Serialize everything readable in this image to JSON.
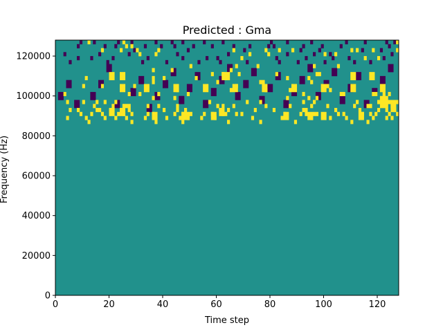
{
  "chart_data": {
    "type": "heatmap",
    "title": "Predicted : Gma",
    "xlabel": "Time step",
    "ylabel": "Frequency (Hz)",
    "xlim": [
      0,
      128
    ],
    "ylim": [
      0,
      128000
    ],
    "x_ticks": [
      0,
      20,
      40,
      60,
      80,
      100,
      120
    ],
    "y_ticks": [
      0,
      20000,
      40000,
      60000,
      80000,
      100000,
      120000
    ],
    "x_tick_labels": [
      "0",
      "20",
      "40",
      "60",
      "80",
      "100",
      "120"
    ],
    "y_tick_labels": [
      "0",
      "20000",
      "40000",
      "60000",
      "80000",
      "100000",
      "120000"
    ],
    "n_time_steps": 128,
    "n_freq_bins": 64,
    "value_levels": [
      -1,
      0,
      1
    ],
    "colors": {
      "-1": "#440154",
      "0": "#21918c",
      "1": "#fde725"
    },
    "background_value": 0,
    "cells_high": [
      [
        12,
        63
      ],
      [
        25,
        63
      ],
      [
        26,
        62
      ],
      [
        28,
        62
      ],
      [
        127,
        63
      ],
      [
        17,
        61
      ],
      [
        24,
        61
      ],
      [
        30,
        61
      ],
      [
        38,
        61
      ],
      [
        66,
        61
      ],
      [
        78,
        61
      ],
      [
        83,
        61
      ],
      [
        88,
        61
      ],
      [
        110,
        61
      ],
      [
        112,
        61
      ],
      [
        118,
        61
      ],
      [
        127,
        61
      ],
      [
        31,
        60
      ],
      [
        37,
        60
      ],
      [
        72,
        60
      ],
      [
        79,
        60
      ],
      [
        100,
        60
      ],
      [
        104,
        60
      ],
      [
        69,
        59
      ],
      [
        115,
        59
      ],
      [
        120,
        59
      ],
      [
        50,
        57
      ],
      [
        67,
        57
      ],
      [
        75,
        57
      ],
      [
        96,
        57
      ],
      [
        105,
        57
      ],
      [
        36,
        56
      ],
      [
        43,
        56
      ],
      [
        65,
        56
      ],
      [
        58,
        55
      ],
      [
        62,
        55
      ],
      [
        68,
        55
      ],
      [
        82,
        55
      ],
      [
        97,
        55
      ],
      [
        98,
        55
      ],
      [
        11,
        54
      ],
      [
        40,
        54
      ],
      [
        52,
        54
      ],
      [
        86,
        54
      ],
      [
        94,
        54
      ],
      [
        60,
        53
      ],
      [
        76,
        53
      ],
      [
        77,
        53
      ],
      [
        95,
        53
      ],
      [
        10,
        52
      ],
      [
        17,
        52
      ],
      [
        29,
        52
      ],
      [
        67,
        52
      ],
      [
        101,
        52
      ],
      [
        45,
        51
      ],
      [
        65,
        51
      ],
      [
        78,
        51
      ],
      [
        87,
        51
      ],
      [
        102,
        51
      ],
      [
        3,
        50
      ],
      [
        27,
        50
      ],
      [
        31,
        50
      ],
      [
        38,
        50
      ],
      [
        49,
        50
      ],
      [
        92,
        50
      ],
      [
        106,
        50
      ],
      [
        107,
        50
      ],
      [
        118,
        50
      ],
      [
        119,
        50
      ],
      [
        122,
        50
      ],
      [
        124,
        50
      ],
      [
        36,
        49
      ],
      [
        44,
        49
      ],
      [
        86,
        49
      ],
      [
        94,
        49
      ],
      [
        97,
        49
      ],
      [
        4,
        48
      ],
      [
        10,
        48
      ],
      [
        15,
        48
      ],
      [
        18,
        48
      ],
      [
        22,
        48
      ],
      [
        57,
        48
      ],
      [
        71,
        48
      ],
      [
        76,
        48
      ],
      [
        92,
        48
      ],
      [
        96,
        48
      ],
      [
        112,
        48
      ],
      [
        120,
        48
      ],
      [
        124,
        48
      ],
      [
        127,
        48
      ],
      [
        14,
        47
      ],
      [
        21,
        47
      ],
      [
        25,
        47
      ],
      [
        26,
        47
      ],
      [
        27,
        47
      ],
      [
        34,
        47
      ],
      [
        38,
        47
      ],
      [
        45,
        47
      ],
      [
        60,
        47
      ],
      [
        62,
        47
      ],
      [
        66,
        47
      ],
      [
        78,
        47
      ],
      [
        87,
        47
      ],
      [
        95,
        47
      ],
      [
        101,
        47
      ],
      [
        111,
        47
      ],
      [
        116,
        47
      ],
      [
        117,
        47
      ],
      [
        125,
        47
      ],
      [
        5,
        46
      ],
      [
        8,
        46
      ],
      [
        15,
        46
      ],
      [
        16,
        46
      ],
      [
        21,
        46
      ],
      [
        24,
        46
      ],
      [
        27,
        46
      ],
      [
        40,
        46
      ],
      [
        45,
        46
      ],
      [
        48,
        46
      ],
      [
        61,
        46
      ],
      [
        64,
        46
      ],
      [
        74,
        46
      ],
      [
        81,
        46
      ],
      [
        92,
        46
      ],
      [
        93,
        46
      ],
      [
        104,
        46
      ],
      [
        113,
        46
      ],
      [
        120,
        46
      ],
      [
        123,
        46
      ],
      [
        126,
        46
      ],
      [
        9,
        45
      ],
      [
        13,
        45
      ],
      [
        17,
        45
      ],
      [
        23,
        45
      ],
      [
        25,
        45
      ],
      [
        28,
        45
      ],
      [
        34,
        45
      ],
      [
        36,
        45
      ],
      [
        44,
        45
      ],
      [
        47,
        45
      ],
      [
        50,
        45
      ],
      [
        55,
        45
      ],
      [
        58,
        45
      ],
      [
        62,
        45
      ],
      [
        63,
        45
      ],
      [
        67,
        45
      ],
      [
        69,
        45
      ],
      [
        85,
        45
      ],
      [
        91,
        45
      ],
      [
        93,
        45
      ],
      [
        96,
        45
      ],
      [
        97,
        45
      ],
      [
        105,
        45
      ],
      [
        107,
        45
      ],
      [
        114,
        45
      ],
      [
        117,
        45
      ],
      [
        119,
        45
      ],
      [
        124,
        45
      ],
      [
        127,
        45
      ],
      [
        4,
        44
      ],
      [
        11,
        44
      ],
      [
        18,
        44
      ],
      [
        22,
        44
      ],
      [
        26,
        44
      ],
      [
        33,
        44
      ],
      [
        41,
        44
      ],
      [
        46,
        44
      ],
      [
        49,
        44
      ],
      [
        54,
        44
      ],
      [
        59,
        44
      ],
      [
        73,
        44
      ],
      [
        84,
        44
      ],
      [
        95,
        44
      ],
      [
        102,
        44
      ],
      [
        108,
        44
      ],
      [
        118,
        44
      ],
      [
        123,
        44
      ],
      [
        125,
        44
      ],
      [
        12,
        43
      ],
      [
        28,
        43
      ],
      [
        37,
        43
      ],
      [
        47,
        43
      ],
      [
        64,
        43
      ],
      [
        76,
        43
      ],
      [
        89,
        43
      ],
      [
        110,
        43
      ],
      [
        116,
        43
      ]
    ],
    "cells_low": [
      [
        9,
        63
      ],
      [
        14,
        63
      ],
      [
        23,
        63
      ],
      [
        28,
        63
      ],
      [
        37,
        63
      ],
      [
        43,
        63
      ],
      [
        47,
        63
      ],
      [
        55,
        63
      ],
      [
        62,
        63
      ],
      [
        80,
        63
      ],
      [
        86,
        63
      ],
      [
        95,
        63
      ],
      [
        108,
        63
      ],
      [
        115,
        63
      ],
      [
        123,
        63
      ],
      [
        126,
        63
      ],
      [
        8,
        62
      ],
      [
        18,
        62
      ],
      [
        22,
        62
      ],
      [
        33,
        62
      ],
      [
        39,
        62
      ],
      [
        44,
        62
      ],
      [
        51,
        62
      ],
      [
        58,
        62
      ],
      [
        66,
        62
      ],
      [
        72,
        62
      ],
      [
        79,
        62
      ],
      [
        81,
        62
      ],
      [
        92,
        62
      ],
      [
        99,
        62
      ],
      [
        106,
        62
      ],
      [
        124,
        62
      ],
      [
        29,
        61
      ],
      [
        49,
        61
      ],
      [
        70,
        61
      ],
      [
        91,
        61
      ],
      [
        98,
        61
      ],
      [
        114,
        61
      ],
      [
        121,
        61
      ],
      [
        3,
        60
      ],
      [
        16,
        60
      ],
      [
        27,
        60
      ],
      [
        45,
        60
      ],
      [
        64,
        60
      ],
      [
        86,
        60
      ],
      [
        96,
        60
      ],
      [
        102,
        60
      ],
      [
        125,
        60
      ],
      [
        8,
        59
      ],
      [
        13,
        59
      ],
      [
        21,
        59
      ],
      [
        34,
        59
      ],
      [
        47,
        59
      ],
      [
        56,
        59
      ],
      [
        60,
        59
      ],
      [
        82,
        59
      ],
      [
        93,
        59
      ],
      [
        103,
        59
      ],
      [
        109,
        59
      ],
      [
        122,
        59
      ],
      [
        5,
        58
      ],
      [
        19,
        58
      ],
      [
        32,
        58
      ],
      [
        41,
        58
      ],
      [
        53,
        58
      ],
      [
        61,
        58
      ],
      [
        71,
        58
      ],
      [
        83,
        58
      ],
      [
        90,
        58
      ],
      [
        100,
        58
      ],
      [
        111,
        58
      ],
      [
        117,
        58
      ]
    ],
    "blocks_high": [
      [
        20,
        54,
        22,
        56
      ],
      [
        24,
        54,
        26,
        56
      ],
      [
        36,
        53,
        37,
        55
      ],
      [
        62,
        54,
        65,
        56
      ],
      [
        110,
        54,
        112,
        56
      ],
      [
        117,
        54,
        119,
        56
      ],
      [
        121,
        47,
        124,
        50
      ],
      [
        125,
        46,
        127,
        49
      ],
      [
        20,
        45,
        22,
        47
      ],
      [
        24,
        45,
        26,
        47
      ],
      [
        36,
        44,
        38,
        46
      ],
      [
        47,
        44,
        50,
        46
      ],
      [
        58,
        44,
        60,
        46
      ],
      [
        61,
        45,
        63,
        47
      ],
      [
        85,
        44,
        87,
        46
      ],
      [
        94,
        44,
        96,
        46
      ],
      [
        99,
        44,
        101,
        46
      ],
      [
        113,
        44,
        115,
        46
      ],
      [
        24,
        51,
        26,
        53
      ],
      [
        33,
        51,
        35,
        53
      ],
      [
        44,
        51,
        46,
        53
      ],
      [
        55,
        51,
        57,
        53
      ],
      [
        66,
        51,
        68,
        53
      ],
      [
        77,
        51,
        79,
        53
      ],
      [
        88,
        51,
        90,
        53
      ],
      [
        99,
        51,
        101,
        53
      ],
      [
        110,
        51,
        112,
        53
      ],
      [
        121,
        51,
        123,
        53
      ]
    ],
    "blocks_low": [
      [
        1,
        49,
        3,
        51
      ],
      [
        4,
        52,
        6,
        54
      ],
      [
        7,
        47,
        9,
        49
      ],
      [
        13,
        49,
        15,
        51
      ],
      [
        16,
        52,
        18,
        54
      ],
      [
        19,
        56,
        21,
        58
      ],
      [
        22,
        47,
        24,
        49
      ],
      [
        28,
        50,
        30,
        52
      ],
      [
        31,
        53,
        33,
        55
      ],
      [
        34,
        46,
        36,
        48
      ],
      [
        37,
        49,
        39,
        51
      ],
      [
        40,
        52,
        42,
        54
      ],
      [
        43,
        55,
        45,
        57
      ],
      [
        46,
        48,
        48,
        50
      ],
      [
        49,
        51,
        51,
        53
      ],
      [
        52,
        54,
        54,
        56
      ],
      [
        55,
        47,
        57,
        49
      ],
      [
        58,
        50,
        60,
        52
      ],
      [
        61,
        53,
        63,
        55
      ],
      [
        64,
        56,
        66,
        58
      ],
      [
        67,
        49,
        69,
        51
      ],
      [
        70,
        52,
        72,
        54
      ],
      [
        73,
        55,
        75,
        57
      ],
      [
        76,
        48,
        78,
        50
      ],
      [
        79,
        51,
        81,
        53
      ],
      [
        82,
        54,
        84,
        56
      ],
      [
        85,
        47,
        87,
        49
      ],
      [
        88,
        50,
        90,
        52
      ],
      [
        91,
        53,
        93,
        55
      ],
      [
        94,
        56,
        96,
        58
      ],
      [
        97,
        49,
        99,
        51
      ],
      [
        100,
        52,
        102,
        54
      ],
      [
        103,
        55,
        105,
        57
      ],
      [
        106,
        48,
        108,
        50
      ],
      [
        109,
        51,
        111,
        53
      ],
      [
        112,
        54,
        114,
        56
      ],
      [
        115,
        47,
        117,
        49
      ],
      [
        118,
        50,
        120,
        52
      ],
      [
        121,
        53,
        123,
        55
      ],
      [
        124,
        56,
        126,
        58
      ]
    ]
  }
}
